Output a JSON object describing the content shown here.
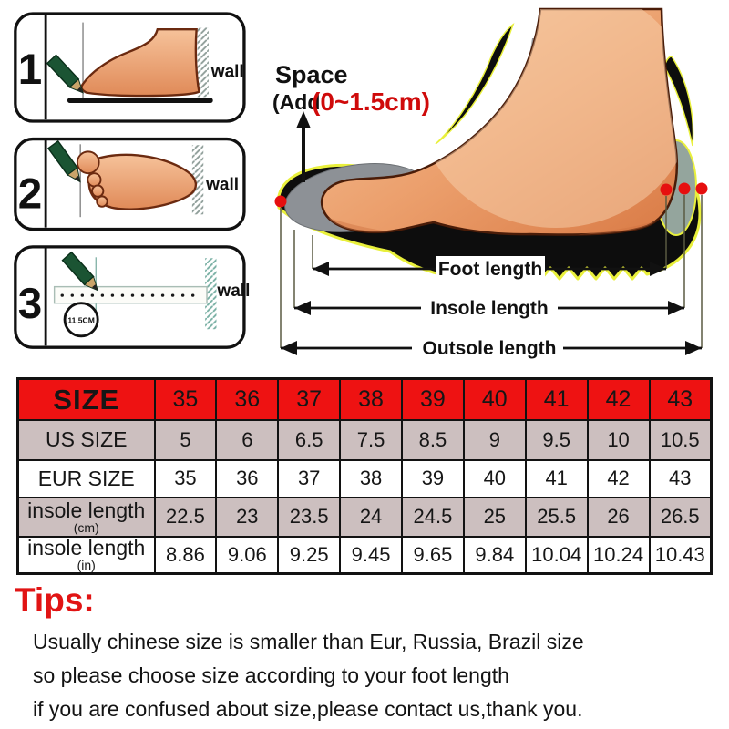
{
  "guide": {
    "steps": [
      {
        "number": "1",
        "wall_label": "wall"
      },
      {
        "number": "2",
        "wall_label": "wall"
      },
      {
        "number": "3",
        "wall_label": "wall",
        "badge": "11.5CM"
      }
    ],
    "space": {
      "line1": "Space",
      "line2": "(Add",
      "value": "(0~1.5cm)"
    },
    "arrows": [
      {
        "label": "Foot length"
      },
      {
        "label": "Insole length"
      },
      {
        "label": "Outsole length"
      }
    ]
  },
  "size_table": {
    "rows": [
      {
        "label": "SIZE",
        "sub": "",
        "theme": "red",
        "values": [
          "35",
          "36",
          "37",
          "38",
          "39",
          "40",
          "41",
          "42",
          "43"
        ]
      },
      {
        "label": "US SIZE",
        "sub": "",
        "theme": "pink",
        "values": [
          "5",
          "6",
          "6.5",
          "7.5",
          "8.5",
          "9",
          "9.5",
          "10",
          "10.5"
        ]
      },
      {
        "label": "EUR SIZE",
        "sub": "",
        "theme": "white",
        "values": [
          "35",
          "36",
          "37",
          "38",
          "39",
          "40",
          "41",
          "42",
          "43"
        ]
      },
      {
        "label": "insole length",
        "sub": "(cm)",
        "theme": "pink",
        "values": [
          "22.5",
          "23",
          "23.5",
          "24",
          "24.5",
          "25",
          "25.5",
          "26",
          "26.5"
        ]
      },
      {
        "label": "insole length",
        "sub": "(in)",
        "theme": "white",
        "values": [
          "8.86",
          "9.06",
          "9.25",
          "9.45",
          "9.65",
          "9.84",
          "10.04",
          "10.24",
          "10.43"
        ]
      }
    ]
  },
  "tips": {
    "title": "Tips:",
    "lines": [
      "Usually chinese size is smaller than Eur, Russia, Brazil size",
      "so please choose size according to your foot length",
      "if you are confused about size,please contact us,thank you."
    ]
  },
  "colors": {
    "header_red": "#ee1212",
    "row_pink": "#ccbfbf",
    "tips_red": "#e11414",
    "space_value_red": "#cf0a0a",
    "dot_red": "#e60f0f",
    "sole_black": "#0d0d0d",
    "outline_yellow": "#e9f03c",
    "insole_gray": "#8d9196",
    "skin": "#eda172",
    "pencil_green": "#1b5433"
  }
}
